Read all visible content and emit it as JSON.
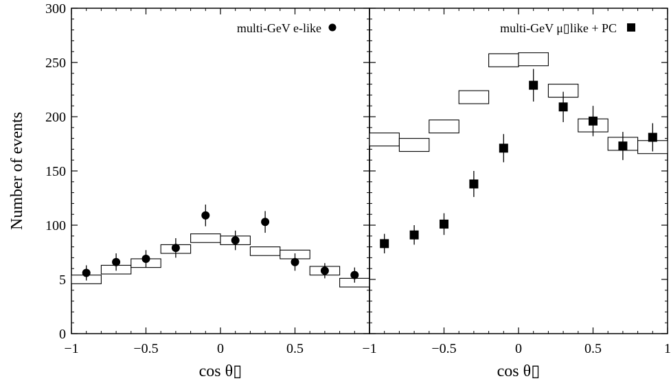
{
  "chart_data": [
    {
      "type": "scatter",
      "panel": "left",
      "xlabel": "cos θ▯",
      "ylabel": "Number of events",
      "xlim": [
        -1,
        1
      ],
      "ylim": [
        0,
        300
      ],
      "xticks": [
        "−1",
        "−0.5",
        "0",
        "0.5"
      ],
      "yticks": [
        "0",
        "5",
        "100",
        "150",
        "200",
        "250",
        "300"
      ],
      "legend": "top-right",
      "bins": [
        -0.9,
        -0.7,
        -0.5,
        -0.3,
        -0.1,
        0.1,
        0.3,
        0.5,
        0.7,
        0.9
      ],
      "series": [
        {
          "name": "multi-GeV e-like",
          "marker": "circle",
          "values": [
            56,
            66,
            69,
            79,
            109,
            86,
            103,
            66,
            58,
            54
          ],
          "errors": [
            7,
            8,
            8,
            9,
            10,
            9,
            10,
            8,
            7,
            7
          ]
        },
        {
          "marker": "box",
          "values": [
            50,
            59,
            65,
            78,
            88,
            86,
            76,
            73,
            58,
            47
          ],
          "box_height": 4
        }
      ]
    },
    {
      "type": "scatter",
      "panel": "right",
      "xlabel": "cos θ▯",
      "ylabel": "",
      "xlim": [
        -1,
        1
      ],
      "ylim": [
        0,
        300
      ],
      "xticks": [
        "−1",
        "−0.5",
        "0",
        "0.5",
        "1"
      ],
      "legend": "top-right",
      "bins": [
        -0.9,
        -0.7,
        -0.5,
        -0.3,
        -0.1,
        0.1,
        0.3,
        0.5,
        0.7,
        0.9
      ],
      "series": [
        {
          "name": "multi-GeV μ▯like + PC",
          "marker": "square",
          "values": [
            83,
            91,
            101,
            138,
            171,
            229,
            209,
            196,
            173,
            181
          ],
          "errors": [
            9,
            9,
            10,
            12,
            13,
            15,
            14,
            14,
            13,
            13
          ]
        },
        {
          "marker": "box",
          "values": [
            179,
            174,
            191,
            218,
            252,
            253,
            224,
            192,
            175,
            172
          ],
          "box_height": 6
        }
      ]
    }
  ]
}
